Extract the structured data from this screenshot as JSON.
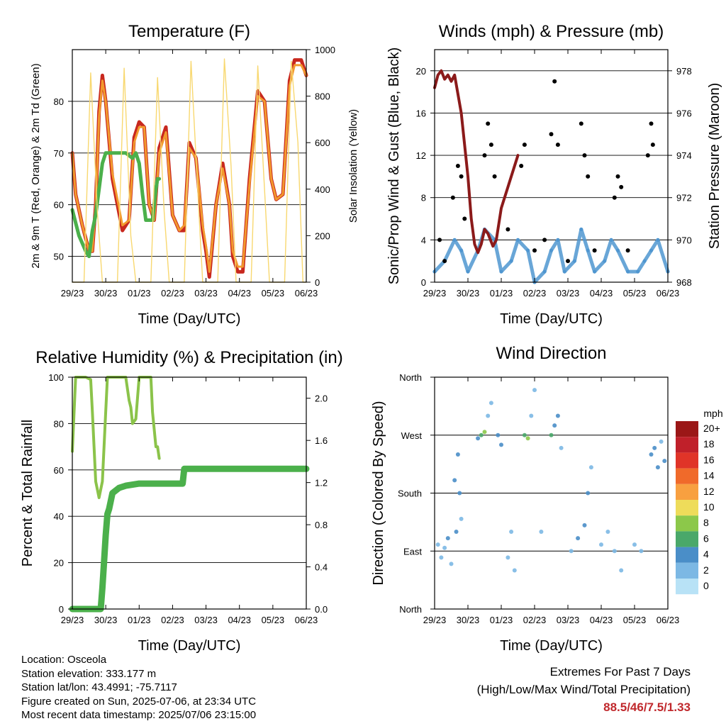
{
  "chart_data": [
    {
      "type": "line",
      "title": "Temperature (F)",
      "xlabel": "Time (Day/UTC)",
      "ylabel": "2m & 9m T (Red, Orange) & 2m Td (Green)",
      "y2label": "Solar Insolation (Yellow)",
      "ylim": [
        45,
        90
      ],
      "y2lim": [
        0,
        1000
      ],
      "x_ticklabels": [
        "29/23",
        "30/23",
        "01/23",
        "02/23",
        "03/23",
        "04/23",
        "05/23",
        "06/23"
      ],
      "y_ticks": [
        50,
        60,
        70,
        80
      ],
      "y2_ticks": [
        0,
        200,
        400,
        600,
        800,
        1000
      ],
      "grid": "horizontal",
      "colors": {
        "temp_2m": "#c8281e",
        "temp_9m": "#f29a2e",
        "dewpoint": "#4bb04b",
        "solar": "#f8d870"
      },
      "series": [
        {
          "name": "2m T",
          "color": "#c8281e",
          "x": [
            0,
            0.1,
            0.3,
            0.5,
            0.6,
            0.7,
            0.8,
            0.9,
            1.0,
            1.2,
            1.5,
            1.7,
            1.85,
            2.0,
            2.15,
            2.3,
            2.45,
            2.6,
            2.8,
            3.0,
            3.2,
            3.35,
            3.5,
            3.7,
            3.9,
            4.0,
            4.1,
            4.3,
            4.5,
            4.7,
            4.8,
            4.95,
            5.1,
            5.3,
            5.55,
            5.75,
            5.95,
            6.1,
            6.3,
            6.5,
            6.65,
            6.85,
            7.0
          ],
          "values": [
            70,
            62,
            56,
            51,
            51,
            60,
            78,
            85,
            80,
            65,
            55,
            57,
            73,
            76,
            75,
            60,
            57,
            71,
            75,
            58,
            55,
            55,
            72,
            69,
            55,
            51,
            46,
            60,
            68,
            60,
            50,
            47,
            47,
            65,
            82,
            80,
            65,
            61,
            62,
            84,
            88,
            88,
            85
          ]
        },
        {
          "name": "9m T",
          "color": "#f29a2e",
          "x": [
            0,
            0.1,
            0.3,
            0.5,
            0.6,
            0.7,
            0.8,
            0.9,
            1.0,
            1.2,
            1.5,
            1.7,
            1.85,
            2.0,
            2.15,
            2.3,
            2.45,
            2.6,
            2.8,
            3.0,
            3.2,
            3.35,
            3.5,
            3.7,
            3.9,
            4.0,
            4.1,
            4.3,
            4.5,
            4.7,
            4.8,
            4.95,
            5.1,
            5.3,
            5.55,
            5.75,
            5.95,
            6.1,
            6.3,
            6.5,
            6.65,
            6.85,
            7.0
          ],
          "values": [
            70,
            62,
            56,
            51,
            51,
            60,
            77,
            84,
            80,
            66,
            56,
            57,
            72,
            75,
            75,
            60,
            57,
            70,
            74,
            58,
            55,
            56,
            71,
            69,
            56,
            52,
            47,
            60,
            67,
            60,
            51,
            48,
            48,
            64,
            81,
            80,
            65,
            61,
            62,
            83,
            87,
            87,
            85
          ]
        },
        {
          "name": "2m Td",
          "color": "#4bb04b",
          "x": [
            0,
            0.2,
            0.4,
            0.5,
            0.6,
            0.7,
            0.8,
            0.9,
            1.0,
            1.2,
            1.4,
            1.6,
            1.8,
            1.9,
            2.0,
            2.1,
            2.2,
            2.4,
            2.5,
            2.55,
            2.6
          ],
          "values": [
            59,
            54,
            51,
            50,
            55,
            58,
            63,
            68,
            70,
            70,
            70,
            70,
            69,
            70,
            68,
            62,
            57,
            57,
            63,
            65,
            65
          ]
        },
        {
          "name": "Solar Insolation",
          "color": "#f8d870",
          "axis": "y2",
          "x": [
            0,
            0.35,
            0.55,
            0.75,
            0.9,
            1.35,
            1.55,
            1.75,
            1.9,
            2.35,
            2.55,
            2.75,
            2.9,
            3.35,
            3.55,
            3.75,
            3.9,
            4.35,
            4.55,
            4.75,
            4.9,
            5.35,
            5.55,
            5.75,
            5.9,
            6.35,
            6.55,
            6.75,
            6.9,
            7.0
          ],
          "values": [
            0,
            0,
            900,
            300,
            0,
            0,
            920,
            200,
            0,
            0,
            880,
            300,
            0,
            0,
            950,
            400,
            0,
            0,
            960,
            500,
            0,
            0,
            930,
            400,
            0,
            0,
            950,
            600,
            0,
            0
          ]
        }
      ]
    },
    {
      "type": "scatter",
      "title": "Winds (mph) & Pressure (mb)",
      "xlabel": "Time (Day/UTC)",
      "ylabel": "Sonic/Prop Wind & Gust (Blue, Black)",
      "y2label": "Station Pressure (Maroon)",
      "ylim": [
        0,
        22
      ],
      "y2lim": [
        968,
        979
      ],
      "x_ticklabels": [
        "29/23",
        "30/23",
        "01/23",
        "02/23",
        "03/23",
        "04/23",
        "05/23",
        "06/23"
      ],
      "y_ticks": [
        0,
        4,
        8,
        12,
        16,
        20
      ],
      "y2_ticks": [
        968,
        970,
        972,
        974,
        976,
        978
      ],
      "grid": "horizontal",
      "colors": {
        "wind": "#4f96d0",
        "gust": "#000000",
        "pressure": "#8b1a1a"
      },
      "series": [
        {
          "name": "Wind",
          "color": "#4f96d0",
          "x": [
            0,
            0.3,
            0.6,
            0.8,
            1.0,
            1.3,
            1.5,
            1.8,
            2.0,
            2.3,
            2.5,
            2.8,
            3.0,
            3.3,
            3.5,
            3.7,
            3.9,
            4.2,
            4.4,
            4.6,
            4.8,
            5.1,
            5.3,
            5.5,
            5.8,
            6.1,
            6.3,
            6.5,
            6.7,
            7.0
          ],
          "values": [
            1,
            2,
            4,
            3,
            1,
            3,
            5,
            4,
            1,
            2,
            4,
            3,
            0,
            1,
            3,
            4,
            1,
            2,
            5,
            3,
            1,
            2,
            4,
            3,
            1,
            1,
            2,
            3,
            4,
            1
          ]
        },
        {
          "name": "Gust",
          "color": "#000000",
          "x": [
            0.15,
            0.3,
            0.55,
            0.7,
            0.8,
            0.9,
            1.5,
            1.6,
            1.7,
            1.8,
            2.2,
            2.6,
            2.7,
            3.0,
            3.3,
            3.5,
            3.6,
            3.7,
            4.0,
            4.4,
            4.5,
            4.6,
            4.8,
            5.4,
            5.5,
            5.6,
            5.8,
            6.4,
            6.5,
            6.55
          ],
          "values": [
            4,
            2,
            8,
            11,
            10,
            6,
            12,
            15,
            13,
            10,
            5,
            11,
            13,
            3,
            4,
            14,
            19,
            13,
            2,
            15,
            12,
            10,
            3,
            8,
            10,
            9,
            3,
            12,
            15,
            13
          ]
        },
        {
          "name": "Station Pressure",
          "color": "#8b1a1a",
          "axis": "y2",
          "x": [
            0,
            0.1,
            0.2,
            0.3,
            0.4,
            0.5,
            0.6,
            0.8,
            1.0,
            1.1,
            1.2,
            1.3,
            1.4,
            1.5,
            1.6,
            1.75,
            1.85,
            2.0,
            2.2,
            2.4,
            2.5
          ],
          "values": [
            977.2,
            977.8,
            978.0,
            977.6,
            977.8,
            977.5,
            977.8,
            976.0,
            973.0,
            971.0,
            969.8,
            969.4,
            969.8,
            970.5,
            970.3,
            969.7,
            970.0,
            971.5,
            972.5,
            973.5,
            974.0
          ]
        }
      ]
    },
    {
      "type": "line",
      "title": "Relative Humidity (%) & Precipitation (in)",
      "xlabel": "Time (Day/UTC)",
      "ylabel": "Percent & Total Rainfall",
      "ylim": [
        0,
        100
      ],
      "y2lim": [
        0,
        2.2
      ],
      "x_ticklabels": [
        "29/23",
        "30/23",
        "01/23",
        "02/23",
        "03/23",
        "04/23",
        "05/23",
        "06/23"
      ],
      "y_ticks": [
        0,
        20,
        40,
        60,
        80,
        100
      ],
      "y2_ticks": [
        0.0,
        0.4,
        0.8,
        1.2,
        1.6,
        2.0
      ],
      "grid": "horizontal",
      "colors": {
        "rh": "#8bc34a",
        "precip": "#4bb04b"
      },
      "series": [
        {
          "name": "Relative Humidity",
          "color": "#8bc34a",
          "x": [
            0,
            0.1,
            0.2,
            0.4,
            0.55,
            0.6,
            0.7,
            0.8,
            0.9,
            1.0,
            1.05,
            1.2,
            1.4,
            1.6,
            1.7,
            1.75,
            1.8,
            1.9,
            2.0,
            2.2,
            2.35,
            2.4,
            2.5,
            2.55,
            2.6
          ],
          "values": [
            68,
            100,
            100,
            100,
            99,
            85,
            55,
            48,
            55,
            85,
            100,
            100,
            100,
            100,
            90,
            87,
            80,
            82,
            100,
            100,
            100,
            85,
            70,
            70,
            65
          ]
        },
        {
          "name": "Total Precipitation",
          "color": "#4bb04b",
          "axis": "y2",
          "x": [
            0,
            0.2,
            0.5,
            0.85,
            0.9,
            0.95,
            1.0,
            1.05,
            1.1,
            1.2,
            1.4,
            1.6,
            1.8,
            2.0,
            2.5,
            3.0,
            3.3,
            3.35,
            3.5,
            4.0,
            5.0,
            6.0,
            7.0
          ],
          "values": [
            0,
            0,
            0,
            0,
            0.2,
            0.45,
            0.7,
            0.9,
            0.95,
            1.1,
            1.15,
            1.17,
            1.18,
            1.19,
            1.19,
            1.19,
            1.19,
            1.33,
            1.33,
            1.33,
            1.33,
            1.33,
            1.33
          ]
        }
      ]
    },
    {
      "type": "scatter",
      "title": "Wind Direction",
      "xlabel": "Time (Day/UTC)",
      "ylabel": "Direction (Colored By Speed)",
      "y_ticklabels": [
        "North",
        "East",
        "South",
        "West",
        "North"
      ],
      "ylim": [
        0,
        360
      ],
      "x_ticklabels": [
        "29/23",
        "30/23",
        "01/23",
        "02/23",
        "03/23",
        "04/23",
        "05/23",
        "06/23"
      ],
      "grid": "horizontal",
      "colorbar": {
        "title": "mph",
        "labels": [
          "20+",
          "18",
          "16",
          "14",
          "12",
          "10",
          "8",
          "6",
          "4",
          "2",
          "0"
        ],
        "colors": [
          "#9b1717",
          "#c0202a",
          "#e03428",
          "#f06a2a",
          "#f8a040",
          "#eedc5a",
          "#8cc84a",
          "#4aa86a",
          "#4a8ec8",
          "#7cb8e4",
          "#b8e2f6"
        ]
      },
      "points": [
        {
          "x": 0.1,
          "y": 100,
          "v": 1
        },
        {
          "x": 0.2,
          "y": 80,
          "v": 2
        },
        {
          "x": 0.3,
          "y": 95,
          "v": 1
        },
        {
          "x": 0.4,
          "y": 110,
          "v": 3
        },
        {
          "x": 0.5,
          "y": 70,
          "v": 2
        },
        {
          "x": 0.6,
          "y": 200,
          "v": 3
        },
        {
          "x": 0.7,
          "y": 240,
          "v": 4
        },
        {
          "x": 0.75,
          "y": 180,
          "v": 3
        },
        {
          "x": 0.8,
          "y": 140,
          "v": 2
        },
        {
          "x": 0.65,
          "y": 120,
          "v": 4
        },
        {
          "x": 1.3,
          "y": 265,
          "v": 4
        },
        {
          "x": 1.4,
          "y": 270,
          "v": 5
        },
        {
          "x": 1.5,
          "y": 275,
          "v": 8
        },
        {
          "x": 1.6,
          "y": 300,
          "v": 2
        },
        {
          "x": 1.7,
          "y": 320,
          "v": 1
        },
        {
          "x": 1.9,
          "y": 270,
          "v": 4
        },
        {
          "x": 2.0,
          "y": 255,
          "v": 3
        },
        {
          "x": 2.2,
          "y": 80,
          "v": 1
        },
        {
          "x": 2.3,
          "y": 120,
          "v": 2
        },
        {
          "x": 2.4,
          "y": 60,
          "v": 1
        },
        {
          "x": 2.7,
          "y": 270,
          "v": 5
        },
        {
          "x": 2.8,
          "y": 265,
          "v": 8
        },
        {
          "x": 2.9,
          "y": 300,
          "v": 2
        },
        {
          "x": 3.0,
          "y": 340,
          "v": 1
        },
        {
          "x": 3.2,
          "y": 120,
          "v": 1
        },
        {
          "x": 3.5,
          "y": 270,
          "v": 6
        },
        {
          "x": 3.6,
          "y": 285,
          "v": 4
        },
        {
          "x": 3.7,
          "y": 300,
          "v": 3
        },
        {
          "x": 3.8,
          "y": 250,
          "v": 2
        },
        {
          "x": 4.1,
          "y": 90,
          "v": 2
        },
        {
          "x": 4.3,
          "y": 110,
          "v": 3
        },
        {
          "x": 4.5,
          "y": 130,
          "v": 4
        },
        {
          "x": 4.6,
          "y": 180,
          "v": 3
        },
        {
          "x": 4.7,
          "y": 220,
          "v": 2
        },
        {
          "x": 5.0,
          "y": 100,
          "v": 1
        },
        {
          "x": 5.2,
          "y": 120,
          "v": 2
        },
        {
          "x": 5.4,
          "y": 90,
          "v": 1
        },
        {
          "x": 5.6,
          "y": 60,
          "v": 1
        },
        {
          "x": 6.0,
          "y": 100,
          "v": 2
        },
        {
          "x": 6.2,
          "y": 90,
          "v": 1
        },
        {
          "x": 6.5,
          "y": 240,
          "v": 3
        },
        {
          "x": 6.6,
          "y": 250,
          "v": 4
        },
        {
          "x": 6.7,
          "y": 220,
          "v": 3
        },
        {
          "x": 6.8,
          "y": 260,
          "v": 2
        },
        {
          "x": 6.9,
          "y": 230,
          "v": 4
        }
      ]
    }
  ],
  "info": {
    "location": "Location: Osceola",
    "elevation": "Station elevation: 333.177 m",
    "latlon": "Station lat/lon: 43.4991; -75.7117",
    "created": "Figure created on Sun, 2025-07-06, at 23:34 UTC",
    "recent": "Most recent data timestamp: 2025/07/06 23:15:00"
  },
  "extremes": {
    "title": "Extremes For Past 7 Days",
    "subtitle": "(High/Low/Max Wind/Total Precipitation)",
    "values": "88.5/46/7.5/1.33"
  }
}
